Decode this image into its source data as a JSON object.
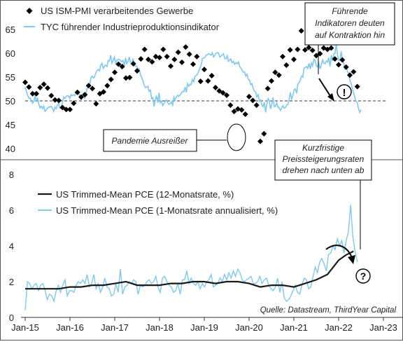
{
  "colors": {
    "pmi": "#000000",
    "tyc": "#7fc8f0",
    "pce12": "#1a1a1a",
    "pce1": "#7fc8f0",
    "annotation": "#000000"
  },
  "chart_data": [
    {
      "type": "line",
      "panel": "top",
      "ylim": [
        39,
        67
      ],
      "yticks": [
        40,
        45,
        50,
        55,
        60,
        65
      ],
      "xlim": [
        "2015-01",
        "2023-09"
      ],
      "reference_line": 50,
      "legend": [
        "US ISM-PMI verarbeitendes Gewerbe",
        "TYC führender Industrieproduktionsindikator"
      ],
      "series": [
        {
          "name": "US ISM-PMI verarbeitendes Gewerbe",
          "style": "diamond-markers",
          "x": [
            "2015-01",
            "2015-02",
            "2015-03",
            "2015-04",
            "2015-05",
            "2015-06",
            "2015-07",
            "2015-08",
            "2015-09",
            "2015-10",
            "2015-11",
            "2015-12",
            "2016-01",
            "2016-02",
            "2016-03",
            "2016-04",
            "2016-05",
            "2016-06",
            "2016-07",
            "2016-08",
            "2016-09",
            "2016-10",
            "2016-11",
            "2016-12",
            "2017-01",
            "2017-02",
            "2017-03",
            "2017-04",
            "2017-05",
            "2017-06",
            "2017-07",
            "2017-08",
            "2017-09",
            "2017-10",
            "2017-11",
            "2017-12",
            "2018-01",
            "2018-02",
            "2018-03",
            "2018-04",
            "2018-05",
            "2018-06",
            "2018-07",
            "2018-08",
            "2018-09",
            "2018-10",
            "2018-11",
            "2018-12",
            "2019-01",
            "2019-02",
            "2019-03",
            "2019-04",
            "2019-05",
            "2019-06",
            "2019-07",
            "2019-08",
            "2019-09",
            "2019-10",
            "2019-11",
            "2019-12",
            "2020-01",
            "2020-02",
            "2020-03",
            "2020-04",
            "2020-05",
            "2020-06",
            "2020-07",
            "2020-08",
            "2020-09",
            "2020-10",
            "2020-11",
            "2020-12",
            "2021-01",
            "2021-02",
            "2021-03",
            "2021-04",
            "2021-05",
            "2021-06",
            "2021-07",
            "2021-08",
            "2021-09",
            "2021-10",
            "2021-11",
            "2021-12",
            "2022-01",
            "2022-02",
            "2022-03",
            "2022-04",
            "2022-05",
            "2022-06"
          ],
          "values": [
            53.9,
            52.9,
            51.5,
            51.5,
            52.8,
            53.5,
            52.7,
            51.1,
            50.2,
            50.1,
            48.6,
            48.2,
            48.2,
            49.5,
            51.8,
            50.8,
            51.3,
            53.2,
            52.6,
            49.4,
            51.5,
            51.9,
            53.2,
            54.5,
            56.0,
            57.7,
            57.2,
            54.8,
            54.9,
            57.8,
            56.3,
            58.8,
            60.8,
            58.7,
            58.2,
            59.3,
            59.1,
            60.8,
            59.3,
            57.3,
            58.7,
            60.2,
            58.1,
            61.3,
            59.8,
            57.7,
            59.3,
            54.1,
            56.6,
            54.2,
            55.3,
            52.8,
            52.1,
            51.7,
            51.2,
            49.1,
            47.8,
            48.3,
            48.1,
            47.2,
            50.9,
            50.1,
            49.1,
            41.5,
            43.1,
            52.6,
            54.2,
            56.0,
            55.4,
            59.3,
            57.5,
            60.7,
            58.7,
            60.8,
            64.7,
            60.7,
            61.2,
            60.6,
            59.5,
            59.9,
            61.1,
            60.8,
            61.1,
            58.8,
            57.6,
            58.6,
            57.1,
            55.4,
            56.1,
            53.0
          ]
        },
        {
          "name": "TYC führender Industrieproduktionsindikator",
          "style": "line",
          "x_start": "2015-01",
          "x_end": "2022-07",
          "values": [
            52.8,
            52.0,
            51.2,
            50.5,
            50.6,
            50.0,
            49.5,
            49.9,
            51.2,
            49.8,
            50.7,
            49.3,
            48.5,
            48.9,
            48.4,
            48.9,
            47.8,
            48.1,
            48.5,
            48.7,
            48.7,
            48.9,
            48.4,
            47.8,
            48.7,
            48.4,
            49.1,
            49.5,
            48.5,
            48.7,
            49.6,
            50.8,
            50.5,
            50.9,
            51.1,
            51.0,
            50.5,
            51.3,
            51.1,
            51.3,
            51.1,
            51.9,
            52.2,
            51.9,
            50.8,
            50.3,
            51.0,
            51.5,
            50.6,
            51.6,
            52.6,
            53.4,
            53.3,
            54.8,
            55.2,
            54.8,
            55.1,
            55.9,
            56.4,
            56.6,
            56.3,
            57.5,
            57.9,
            56.8,
            57.3,
            57.5,
            57.2,
            58.5,
            58.4,
            59.6,
            57.9,
            58.5,
            59.2,
            57.9,
            58.5,
            58.7,
            58.7,
            58.4,
            58.2,
            58.5,
            57.4,
            59.0,
            57.8,
            58.3,
            59.2,
            58.0,
            57.8,
            58.9,
            57.6,
            57.3,
            57.3,
            56.8,
            56.7,
            55.5,
            54.9,
            54.2,
            53.3,
            52.8,
            52.9,
            53.1,
            52.0,
            52.3,
            50.5,
            50.7,
            48.8,
            50.2,
            51.1,
            49.6,
            51.7,
            49.6,
            50.0,
            49.0,
            49.4,
            49.9,
            50.2,
            49.6,
            49.3,
            49.4,
            49.8,
            49.1,
            50.8,
            50.2,
            50.8,
            51.2,
            50.9,
            51.3,
            51.6,
            52.0,
            51.9,
            52.9,
            51.8,
            53.6,
            53.1,
            53.5,
            53.4,
            54.5,
            54.0,
            55.2,
            55.3,
            55.6,
            56.2,
            56.9,
            57.5,
            58.9,
            59.0,
            59.1,
            59.6,
            59.7,
            59.9,
            59.8,
            59.6,
            60.1,
            59.2,
            59.6,
            60.0,
            60.1,
            60.1,
            59.2,
            59.4,
            59.6,
            59.9,
            58.9,
            58.8,
            59.5,
            58.3,
            58.6,
            58.8,
            58.0,
            58.3,
            57.7,
            58.0,
            57.8,
            58.2,
            57.3,
            56.9,
            56.5,
            56.0,
            56.1,
            55.2,
            55.6,
            54.6,
            54.3,
            53.4,
            53.6,
            52.6,
            52.0,
            51.9,
            50.8,
            51.3,
            49.9,
            50.2,
            49.1,
            48.8,
            49.7,
            47.6,
            49.3,
            50.5,
            50.0,
            48.3,
            49.3,
            50.7,
            48.8,
            48.9,
            49.6,
            48.7,
            48.5,
            48.0,
            48.5,
            49.0,
            48.5,
            48.6,
            49.1,
            49.2,
            50.3,
            51.8,
            50.4,
            51.1,
            52.4,
            52.5,
            51.6,
            53.6,
            53.8,
            54.4,
            55.2,
            55.0,
            56.9,
            57.0,
            57.2,
            56.8,
            57.9,
            56.7,
            58.0,
            57.4,
            58.7,
            58.5,
            57.3,
            57.1,
            57.9,
            56.7,
            57.6,
            58.6,
            57.9,
            57.8,
            58.4,
            58.1,
            59.1,
            57.2,
            59.6,
            58.4,
            59.9,
            60.0,
            61.9,
            59.8,
            58.5,
            58.6,
            60.4,
            58.2,
            58.0,
            56.8,
            57.6,
            56.2,
            55.8,
            54.2,
            53.7,
            52.5,
            51.7,
            50.8,
            49.9,
            49.7,
            48.3,
            47.6,
            48.2
          ]
        }
      ],
      "annotations": [
        {
          "text": "Führende Indikatoren deuten auf Kontraktion hin",
          "lines": [
            "Führende",
            "Indikatoren deuten",
            "auf Kontraktion hin"
          ],
          "marker": "!"
        },
        {
          "text": "Pandemie Ausreißer"
        }
      ]
    },
    {
      "type": "line",
      "panel": "bottom",
      "ylim": [
        0,
        8.5
      ],
      "yticks": [
        0,
        2,
        4,
        6,
        8
      ],
      "xlim": [
        "2015-01",
        "2023-09"
      ],
      "xticks": [
        "Jan-15",
        "Jan-16",
        "Jan-17",
        "Jan-18",
        "Jan-19",
        "Jan-20",
        "Jan-21",
        "Jan-22",
        "Jan-23"
      ],
      "legend": [
        "US Trimmed-Mean PCE (12-Monatsrate, %)",
        "US Trimmed-Mean PCE (1-Monatsrate annualisiert, %)"
      ],
      "series": [
        {
          "name": "US Trimmed-Mean PCE (12-Monatsrate, %)",
          "style": "line",
          "x": [
            "2015-01",
            "2015-04",
            "2015-07",
            "2015-10",
            "2016-01",
            "2016-04",
            "2016-07",
            "2016-10",
            "2017-01",
            "2017-04",
            "2017-07",
            "2017-10",
            "2018-01",
            "2018-04",
            "2018-07",
            "2018-10",
            "2019-01",
            "2019-04",
            "2019-07",
            "2019-10",
            "2020-01",
            "2020-04",
            "2020-07",
            "2020-10",
            "2021-01",
            "2021-04",
            "2021-07",
            "2021-10",
            "2022-01",
            "2022-03",
            "2022-05"
          ],
          "values": [
            1.6,
            1.6,
            1.6,
            1.6,
            1.7,
            1.7,
            1.8,
            1.8,
            1.9,
            2.0,
            1.8,
            1.8,
            1.8,
            1.9,
            1.9,
            2.0,
            2.0,
            1.9,
            2.0,
            2.0,
            1.9,
            1.7,
            1.8,
            1.8,
            1.7,
            1.9,
            2.1,
            2.4,
            3.2,
            3.5,
            3.7
          ]
        },
        {
          "name": "US Trimmed-Mean PCE (1-Monatsrate annualisiert, %)",
          "style": "line",
          "x_start": "2015-01",
          "x_end": "2022-06",
          "values": [
            0.4,
            2.0,
            1.9,
            1.6,
            1.8,
            1.9,
            1.5,
            1.8,
            1.9,
            1.5,
            1.0,
            1.3,
            1.2,
            0.9,
            1.5,
            1.8,
            1.4,
            1.8,
            2.1,
            1.2,
            1.5,
            1.5,
            1.4,
            1.8,
            2.0,
            1.9,
            2.1,
            1.9,
            2.4,
            1.7,
            1.9,
            2.4,
            1.6,
            1.9,
            1.4,
            1.7,
            2.2,
            1.7,
            1.6,
            1.2,
            1.3,
            1.9,
            1.4,
            2.7,
            1.3,
            1.7,
            1.8,
            2.0,
            1.9,
            2.1,
            2.0,
            1.3,
            1.8,
            1.7,
            1.8,
            2.0,
            2.1,
            1.9,
            2.0,
            2.3,
            1.7,
            1.4,
            2.2,
            2.3,
            2.0,
            1.8,
            1.7,
            1.4,
            1.5,
            1.9,
            1.3,
            2.1,
            2.1,
            2.6,
            1.9,
            2.2,
            1.9,
            1.8,
            2.0,
            1.6,
            1.9,
            1.7,
            2.0,
            2.1,
            2.4,
            1.7,
            1.8,
            1.9,
            2.2,
            2.0,
            2.4,
            2.1,
            2.5,
            2.2,
            2.6,
            2.3,
            2.7,
            2.5,
            2.1,
            2.0,
            2.1,
            2.2,
            2.3,
            1.9,
            1.9,
            2.0,
            2.3,
            1.9,
            2.1,
            2.2,
            1.8,
            1.6,
            1.5,
            1.7,
            2.2,
            1.4,
            2.0,
            1.1,
            0.9,
            1.0,
            1.2,
            1.5,
            1.8,
            1.4,
            1.3,
            1.8,
            2.2,
            2.1,
            1.6,
            1.7,
            2.3,
            2.8,
            2.5,
            3.1,
            3.3,
            3.0,
            2.6,
            3.5,
            3.6,
            4.0,
            3.8,
            4.4,
            4.0,
            4.3,
            3.6,
            4.3,
            4.8,
            6.3,
            4.5,
            3.7,
            3.1
          ]
        }
      ],
      "annotations": [
        {
          "text": "Kurzfristige Preissteigerungsraten drehen nach unten ab",
          "lines": [
            "Kurzfristige",
            "Preissteigerungsraten",
            "drehen nach unten ab"
          ],
          "marker": "?"
        }
      ],
      "source": "Quelle: Datastream, ThirdYear Capital"
    }
  ]
}
